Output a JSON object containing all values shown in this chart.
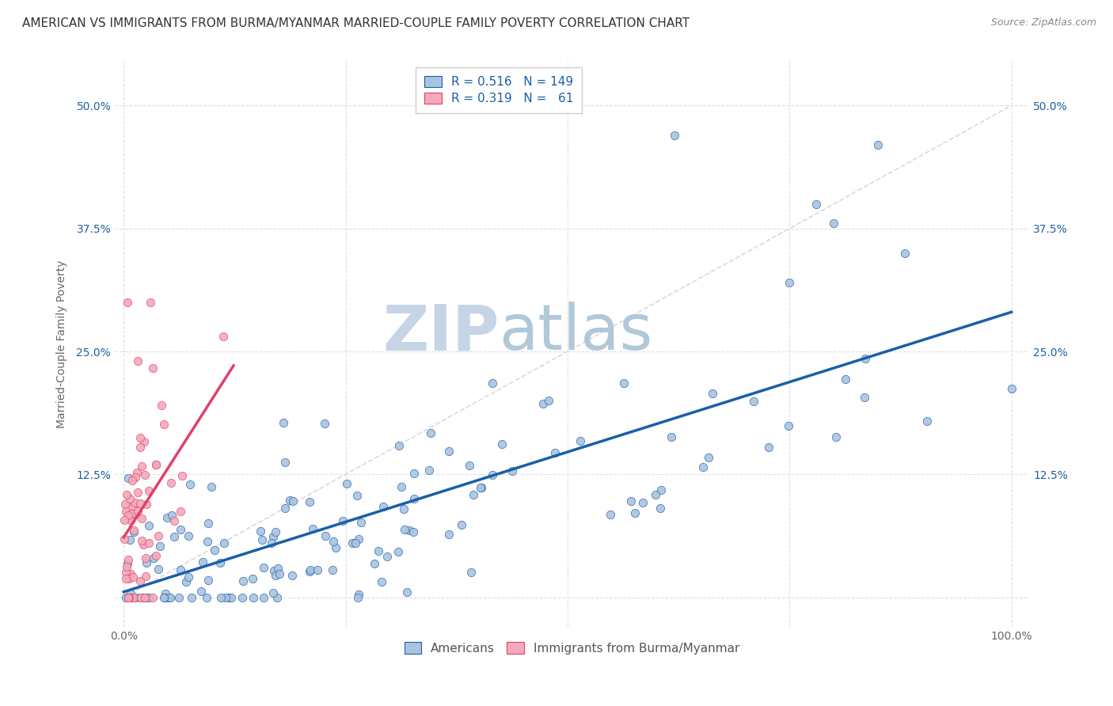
{
  "title": "AMERICAN VS IMMIGRANTS FROM BURMA/MYANMAR MARRIED-COUPLE FAMILY POVERTY CORRELATION CHART",
  "source": "Source: ZipAtlas.com",
  "ylabel": "Married-Couple Family Poverty",
  "xlim": [
    -0.01,
    1.02
  ],
  "ylim": [
    -0.03,
    0.545
  ],
  "xticks": [
    0.0,
    0.25,
    0.5,
    0.75,
    1.0
  ],
  "xticklabels": [
    "0.0%",
    "",
    "",
    "",
    "100.0%"
  ],
  "yticks": [
    0.0,
    0.125,
    0.25,
    0.375,
    0.5
  ],
  "yticklabels": [
    "",
    "12.5%",
    "25.0%",
    "37.5%",
    "50.0%"
  ],
  "americans_R": 0.516,
  "americans_N": 149,
  "burma_R": 0.319,
  "burma_N": 61,
  "scatter_color_americans": "#aac4e0",
  "scatter_color_burma": "#f2aaba",
  "line_color_americans": "#1a5fa8",
  "line_color_burma": "#e0406a",
  "line_color_diagonal": "#d0d0d0",
  "background_color": "#ffffff",
  "watermark_zip": "ZIP",
  "watermark_atlas": "atlas",
  "watermark_color_zip": "#c5d5e5",
  "watermark_color_atlas": "#b0c8d8",
  "legend_label_americans": "Americans",
  "legend_label_burma": "Immigrants from Burma/Myanmar",
  "title_fontsize": 11,
  "axis_label_fontsize": 10,
  "tick_fontsize": 10,
  "legend_fontsize": 11,
  "tick_color_y": "#2060a0",
  "tick_color_x": "#666666",
  "grid_color": "#e0e0e0"
}
